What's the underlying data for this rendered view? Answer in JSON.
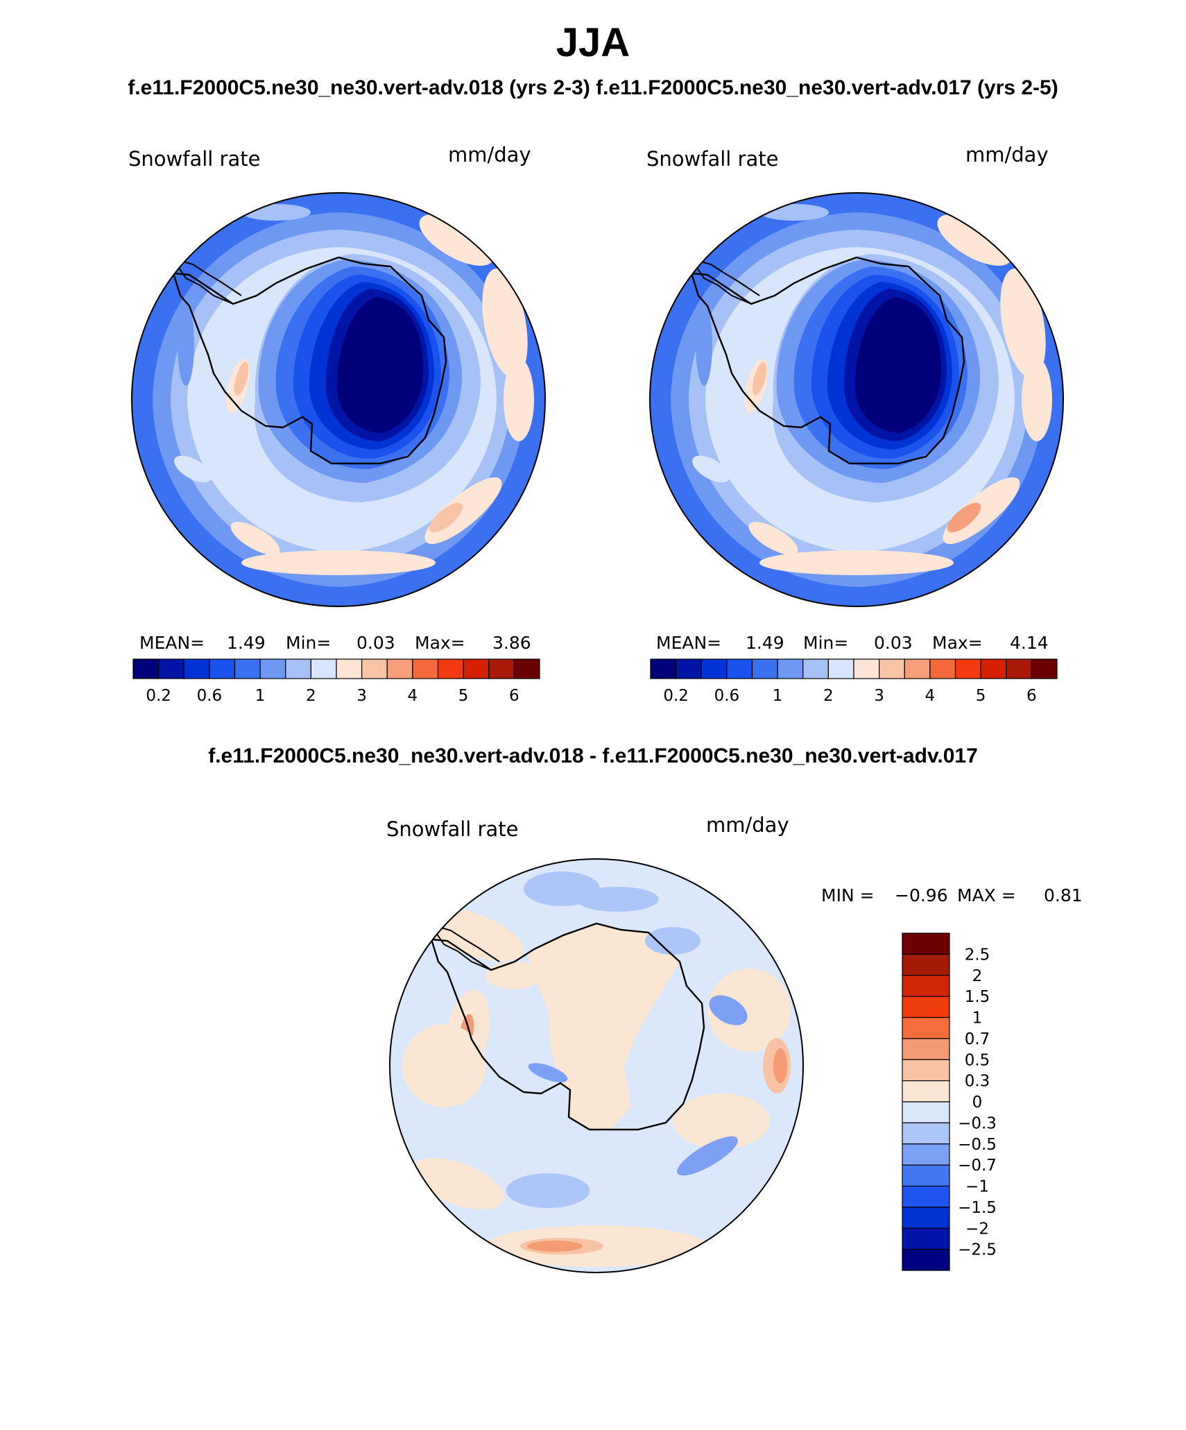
{
  "title": "JJA",
  "top_subtitle": "f.e11.F2000C5.ne30_ne30.vert-adv.018 (yrs 2-3)  f.e11.F2000C5.ne30_ne30.vert-adv.017 (yrs 2-5)",
  "diff_title": "f.e11.F2000C5.ne30_ne30.vert-adv.018 - f.e11.F2000C5.ne30_ne30.vert-adv.017",
  "colors": {
    "abs_scale": [
      "#00007a",
      "#0014a6",
      "#0033d6",
      "#1a52ee",
      "#3b70f0",
      "#6f98f2",
      "#a6c1f6",
      "#d8e6fb",
      "#fde6d6",
      "#f9c3a6",
      "#f79e7a",
      "#f5683b",
      "#f13a10",
      "#d52004",
      "#a81a07",
      "#6b0000"
    ],
    "diff_scale": [
      "#000080",
      "#0015a8",
      "#0033d1",
      "#1e55f0",
      "#4477f2",
      "#7ba0f4",
      "#adc6f8",
      "#dbe8fb",
      "#fbe6d3",
      "#f8c2a4",
      "#f49a74",
      "#f46d3a",
      "#ee3c0f",
      "#d02605",
      "#a31a07",
      "#6e0000"
    ]
  },
  "chart_data": [
    {
      "type": "heatmap",
      "projection": "south-polar-stereographic",
      "left_label": "Snowfall rate",
      "right_label": "mm/day",
      "stats": {
        "mean_label": "MEAN=",
        "mean": "1.49",
        "min_label": "Min=",
        "min": "0.03",
        "max_label": "Max=",
        "max": "3.86"
      },
      "colorbar": {
        "orientation": "horizontal",
        "levels": [
          0.2,
          0.4,
          0.6,
          0.8,
          1,
          1.5,
          2,
          2.5,
          3,
          3.5,
          4,
          4.5,
          5,
          5.5,
          6
        ],
        "tick_labels": [
          "0.2",
          "0.6",
          "1",
          "2",
          "3",
          "4",
          "5",
          "6"
        ]
      }
    },
    {
      "type": "heatmap",
      "projection": "south-polar-stereographic",
      "left_label": "Snowfall rate",
      "right_label": "mm/day",
      "stats": {
        "mean_label": "MEAN=",
        "mean": "1.49",
        "min_label": "Min=",
        "min": "0.03",
        "max_label": "Max=",
        "max": "4.14"
      },
      "colorbar": {
        "orientation": "horizontal",
        "levels": [
          0.2,
          0.4,
          0.6,
          0.8,
          1,
          1.5,
          2,
          2.5,
          3,
          3.5,
          4,
          4.5,
          5,
          5.5,
          6
        ],
        "tick_labels": [
          "0.2",
          "0.6",
          "1",
          "2",
          "3",
          "4",
          "5",
          "6"
        ]
      }
    },
    {
      "type": "heatmap",
      "projection": "south-polar-stereographic",
      "left_label": "Snowfall rate",
      "right_label": "mm/day",
      "stats": {
        "min_label": "MIN =",
        "min": "−0.96",
        "max_label": "MAX =",
        "max": "0.81"
      },
      "colorbar": {
        "orientation": "vertical",
        "levels": [
          -2.5,
          -2,
          -1.5,
          -1,
          -0.7,
          -0.5,
          -0.3,
          0,
          0.3,
          0.5,
          0.7,
          1,
          1.5,
          2,
          2.5
        ],
        "tick_labels": [
          "2.5",
          "2",
          "1.5",
          "1",
          "0.7",
          "0.5",
          "0.3",
          "0",
          "−0.3",
          "−0.5",
          "−0.7",
          "−1",
          "−1.5",
          "−2",
          "−2.5"
        ]
      }
    }
  ]
}
